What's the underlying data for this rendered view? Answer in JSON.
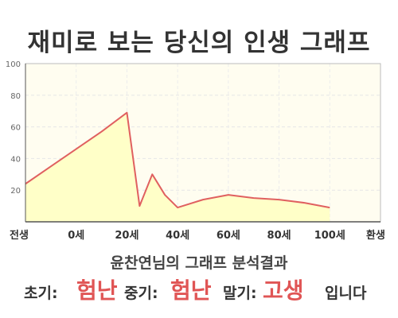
{
  "title": "재미로 보는 당신의 인생 그래프",
  "summary": "윤찬연님의 그래프 분석결과",
  "phases": {
    "early_label": "초기:",
    "early_value": "험난",
    "mid_label": "중기:",
    "mid_value": "험난",
    "late_label": "말기:",
    "late_value": "고생",
    "ending": "입니다"
  },
  "colors": {
    "line": "#e06060",
    "fill": "#ffffc8",
    "plot_bg": "#fffdf0",
    "accent": "#e05555"
  },
  "chart_data": {
    "type": "area",
    "categories": [
      "전생",
      "0세",
      "20세",
      "40세",
      "60세",
      "80세",
      "100세",
      "환생"
    ],
    "x": [
      -20,
      -10,
      0,
      10,
      20,
      25,
      30,
      35,
      40,
      50,
      60,
      70,
      80,
      90,
      100,
      110,
      120
    ],
    "x_tick_values": [
      -20,
      0,
      20,
      40,
      60,
      80,
      100,
      120
    ],
    "y": [
      24,
      35,
      46,
      57,
      69,
      10,
      30,
      17,
      9,
      14,
      17,
      15,
      14,
      12,
      9,
      null,
      null
    ],
    "ylim": [
      0,
      100
    ],
    "yticks": [
      20,
      40,
      60,
      80,
      100
    ],
    "grid": true,
    "title": "",
    "xlabel": "",
    "ylabel": ""
  }
}
